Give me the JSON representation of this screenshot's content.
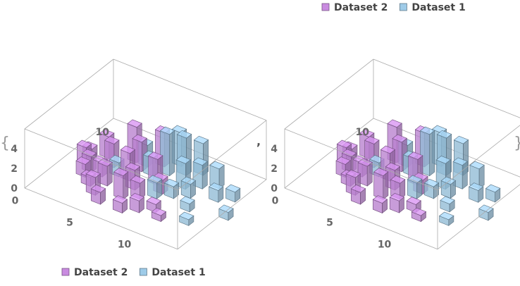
{
  "chart_data": [
    {
      "type": "bar3d",
      "legend": {
        "placement": "bottom-left",
        "entries": [
          {
            "name": "Dataset 2",
            "color": "#c98be0"
          },
          {
            "name": "Dataset 1",
            "color": "#9ecbe8"
          }
        ]
      },
      "x_ticks": [
        "0",
        "5",
        "10"
      ],
      "y_ticks": [
        "10"
      ],
      "z_ticks": [
        "0",
        "2",
        "4"
      ],
      "zlim": [
        0,
        4.5
      ],
      "series": [
        {
          "name": "Dataset 2",
          "points": [
            {
              "x": 1,
              "y": 7,
              "z": 1.6
            },
            {
              "x": 1,
              "y": 8,
              "z": 1.0
            },
            {
              "x": 2,
              "y": 5,
              "z": 1.3
            },
            {
              "x": 2,
              "y": 6,
              "z": 1.6
            },
            {
              "x": 2,
              "y": 9,
              "z": 2.2
            },
            {
              "x": 3,
              "y": 4,
              "z": 0.9
            },
            {
              "x": 3,
              "y": 6,
              "z": 1.4
            },
            {
              "x": 3,
              "y": 8,
              "z": 2.4
            },
            {
              "x": 4,
              "y": 3,
              "z": 1.8
            },
            {
              "x": 4,
              "y": 5,
              "z": 2.0
            },
            {
              "x": 4,
              "y": 10,
              "z": 3.6
            },
            {
              "x": 5,
              "y": 2,
              "z": 1.2
            },
            {
              "x": 5,
              "y": 7,
              "z": 2.8
            },
            {
              "x": 5,
              "y": 9,
              "z": 3.0
            },
            {
              "x": 6,
              "y": 4,
              "z": 2.4
            },
            {
              "x": 6,
              "y": 6,
              "z": 2.0
            },
            {
              "x": 6,
              "y": 11,
              "z": 3.4
            },
            {
              "x": 7,
              "y": 2,
              "z": 1.0
            },
            {
              "x": 7,
              "y": 5,
              "z": 1.6
            },
            {
              "x": 7,
              "y": 8,
              "z": 2.6
            },
            {
              "x": 8,
              "y": 3,
              "z": 1.2
            },
            {
              "x": 8,
              "y": 7,
              "z": 1.4
            },
            {
              "x": 9,
              "y": 4,
              "z": 0.8
            },
            {
              "x": 10,
              "y": 3,
              "z": 0.6
            }
          ]
        },
        {
          "name": "Dataset 1",
          "points": [
            {
              "x": 4,
              "y": 7,
              "z": 1.4
            },
            {
              "x": 5,
              "y": 10,
              "z": 2.2
            },
            {
              "x": 6,
              "y": 9,
              "z": 1.8
            },
            {
              "x": 7,
              "y": 10,
              "z": 4.2
            },
            {
              "x": 7,
              "y": 12,
              "z": 3.4
            },
            {
              "x": 8,
              "y": 11,
              "z": 3.8
            },
            {
              "x": 8,
              "y": 6,
              "z": 1.6
            },
            {
              "x": 9,
              "y": 9,
              "z": 2.6
            },
            {
              "x": 9,
              "y": 12,
              "z": 3.2
            },
            {
              "x": 9,
              "y": 7,
              "z": 1.2
            },
            {
              "x": 10,
              "y": 10,
              "z": 2.4
            },
            {
              "x": 10,
              "y": 8,
              "z": 1.4
            },
            {
              "x": 11,
              "y": 11,
              "z": 2.0
            },
            {
              "x": 11,
              "y": 6,
              "z": 0.8
            },
            {
              "x": 12,
              "y": 9,
              "z": 1.2
            },
            {
              "x": 12,
              "y": 4,
              "z": 0.6
            },
            {
              "x": 13,
              "y": 10,
              "z": 1.0
            },
            {
              "x": 14,
              "y": 7,
              "z": 0.8
            }
          ]
        }
      ]
    },
    {
      "type": "bar3d",
      "legend": {
        "placement": "top-right",
        "entries": [
          {
            "name": "Dataset 2",
            "color": "#c98be0"
          },
          {
            "name": "Dataset 1",
            "color": "#9ecbe8"
          }
        ]
      },
      "x_ticks": [
        "0",
        "5",
        "10"
      ],
      "y_ticks": [
        "10"
      ],
      "z_ticks": [
        "0",
        "2",
        "4"
      ],
      "zlim": [
        0,
        4.5
      ],
      "series": [
        {
          "name": "Dataset 2",
          "points": [
            {
              "x": 1,
              "y": 7,
              "z": 1.6
            },
            {
              "x": 1,
              "y": 8,
              "z": 1.0
            },
            {
              "x": 2,
              "y": 5,
              "z": 1.3
            },
            {
              "x": 2,
              "y": 6,
              "z": 1.6
            },
            {
              "x": 2,
              "y": 9,
              "z": 2.2
            },
            {
              "x": 3,
              "y": 4,
              "z": 0.9
            },
            {
              "x": 3,
              "y": 6,
              "z": 1.4
            },
            {
              "x": 3,
              "y": 8,
              "z": 2.4
            },
            {
              "x": 4,
              "y": 3,
              "z": 1.8
            },
            {
              "x": 4,
              "y": 5,
              "z": 2.0
            },
            {
              "x": 4,
              "y": 10,
              "z": 3.6
            },
            {
              "x": 5,
              "y": 2,
              "z": 1.2
            },
            {
              "x": 5,
              "y": 7,
              "z": 2.8
            },
            {
              "x": 5,
              "y": 9,
              "z": 3.0
            },
            {
              "x": 6,
              "y": 4,
              "z": 2.4
            },
            {
              "x": 6,
              "y": 6,
              "z": 2.0
            },
            {
              "x": 6,
              "y": 11,
              "z": 3.4
            },
            {
              "x": 7,
              "y": 2,
              "z": 1.0
            },
            {
              "x": 7,
              "y": 5,
              "z": 1.6
            },
            {
              "x": 7,
              "y": 8,
              "z": 2.6
            },
            {
              "x": 8,
              "y": 3,
              "z": 1.2
            },
            {
              "x": 8,
              "y": 7,
              "z": 1.4
            },
            {
              "x": 9,
              "y": 4,
              "z": 0.8
            },
            {
              "x": 10,
              "y": 3,
              "z": 0.6
            }
          ]
        },
        {
          "name": "Dataset 1",
          "points": [
            {
              "x": 4,
              "y": 7,
              "z": 1.4
            },
            {
              "x": 5,
              "y": 10,
              "z": 2.2
            },
            {
              "x": 6,
              "y": 9,
              "z": 1.8
            },
            {
              "x": 7,
              "y": 10,
              "z": 4.2
            },
            {
              "x": 7,
              "y": 12,
              "z": 3.4
            },
            {
              "x": 8,
              "y": 11,
              "z": 3.8
            },
            {
              "x": 8,
              "y": 6,
              "z": 1.6
            },
            {
              "x": 9,
              "y": 9,
              "z": 2.6
            },
            {
              "x": 9,
              "y": 12,
              "z": 3.2
            },
            {
              "x": 9,
              "y": 7,
              "z": 1.2
            },
            {
              "x": 10,
              "y": 10,
              "z": 2.4
            },
            {
              "x": 10,
              "y": 8,
              "z": 1.4
            },
            {
              "x": 11,
              "y": 11,
              "z": 2.0
            },
            {
              "x": 11,
              "y": 6,
              "z": 0.8
            },
            {
              "x": 12,
              "y": 9,
              "z": 1.2
            },
            {
              "x": 12,
              "y": 4,
              "z": 0.6
            },
            {
              "x": 13,
              "y": 10,
              "z": 1.0
            },
            {
              "x": 14,
              "y": 7,
              "z": 0.8
            }
          ]
        }
      ]
    }
  ],
  "list_punctuation": {
    "open": "{",
    "separator": ",",
    "close": "}"
  },
  "colors": {
    "dataset2": "#c98be0",
    "dataset1": "#9ecbe8",
    "box_edge": "#aaaaaa"
  }
}
